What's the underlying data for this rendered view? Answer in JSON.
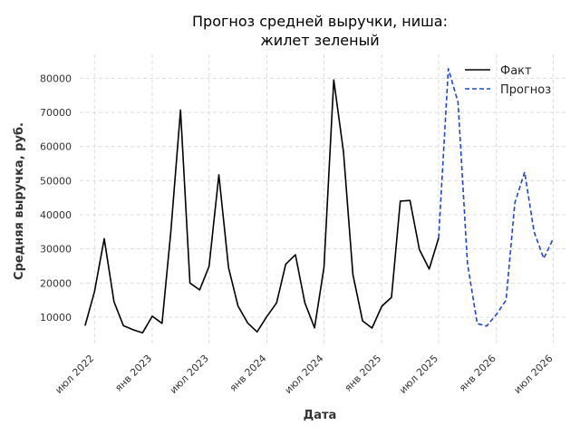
{
  "chart_data": {
    "type": "line",
    "title_line1": "Прогноз средней выручки, ниша:",
    "title_line2": "жилет зеленый",
    "xlabel": "Дата",
    "ylabel": "Средняя выручка, руб.",
    "xlim": [
      "2022-05-15",
      "2026-08-15"
    ],
    "ylim": [
      1500,
      87000
    ],
    "grid": true,
    "legend_position": "top-right",
    "x_ticks": [
      {
        "date": "2022-07-01",
        "label": "июл 2022"
      },
      {
        "date": "2023-01-01",
        "label": "янв 2023"
      },
      {
        "date": "2023-07-01",
        "label": "июл 2023"
      },
      {
        "date": "2024-01-01",
        "label": "янв 2024"
      },
      {
        "date": "2024-07-01",
        "label": "июл 2024"
      },
      {
        "date": "2025-01-01",
        "label": "янв 2025"
      },
      {
        "date": "2025-07-01",
        "label": "июл 2025"
      },
      {
        "date": "2026-01-01",
        "label": "янв 2026"
      },
      {
        "date": "2026-07-01",
        "label": "июл 2026"
      }
    ],
    "y_ticks": [
      10000,
      20000,
      30000,
      40000,
      50000,
      60000,
      70000,
      80000
    ],
    "series": [
      {
        "name": "Факт",
        "color": "#000000",
        "style": "solid",
        "points": [
          [
            "2022-06-01",
            7500
          ],
          [
            "2022-07-01",
            17500
          ],
          [
            "2022-08-01",
            33000
          ],
          [
            "2022-09-01",
            14500
          ],
          [
            "2022-10-01",
            7500
          ],
          [
            "2022-11-01",
            6300
          ],
          [
            "2022-12-01",
            5400
          ],
          [
            "2023-01-01",
            10300
          ],
          [
            "2023-02-01",
            8200
          ],
          [
            "2023-03-01",
            35000
          ],
          [
            "2023-04-01",
            70700
          ],
          [
            "2023-05-01",
            20000
          ],
          [
            "2023-06-01",
            18000
          ],
          [
            "2023-07-01",
            24900
          ],
          [
            "2023-08-01",
            51700
          ],
          [
            "2023-09-01",
            24500
          ],
          [
            "2023-10-01",
            13300
          ],
          [
            "2023-11-01",
            8300
          ],
          [
            "2023-12-01",
            5700
          ],
          [
            "2024-01-01",
            10200
          ],
          [
            "2024-02-01",
            14200
          ],
          [
            "2024-03-01",
            25500
          ],
          [
            "2024-04-01",
            28300
          ],
          [
            "2024-05-01",
            14200
          ],
          [
            "2024-06-01",
            6900
          ],
          [
            "2024-07-01",
            24600
          ],
          [
            "2024-08-01",
            79500
          ],
          [
            "2024-09-01",
            58500
          ],
          [
            "2024-10-01",
            22500
          ],
          [
            "2024-11-01",
            8900
          ],
          [
            "2024-12-01",
            6800
          ],
          [
            "2025-01-01",
            13200
          ],
          [
            "2025-02-01",
            15800
          ],
          [
            "2025-03-01",
            44000
          ],
          [
            "2025-04-01",
            44200
          ],
          [
            "2025-05-01",
            29800
          ],
          [
            "2025-06-01",
            24100
          ],
          [
            "2025-07-01",
            33200
          ]
        ]
      },
      {
        "name": "Прогноз",
        "color": "#1f45d8",
        "style": "dashed",
        "points": [
          [
            "2025-07-01",
            33200
          ],
          [
            "2025-08-01",
            82800
          ],
          [
            "2025-09-01",
            73000
          ],
          [
            "2025-10-01",
            25800
          ],
          [
            "2025-11-01",
            8100
          ],
          [
            "2025-12-01",
            7400
          ],
          [
            "2026-01-01",
            10800
          ],
          [
            "2026-02-01",
            15000
          ],
          [
            "2026-03-01",
            43500
          ],
          [
            "2026-04-01",
            52500
          ],
          [
            "2026-05-01",
            35000
          ],
          [
            "2026-06-01",
            27200
          ],
          [
            "2026-07-01",
            33000
          ]
        ]
      }
    ]
  }
}
